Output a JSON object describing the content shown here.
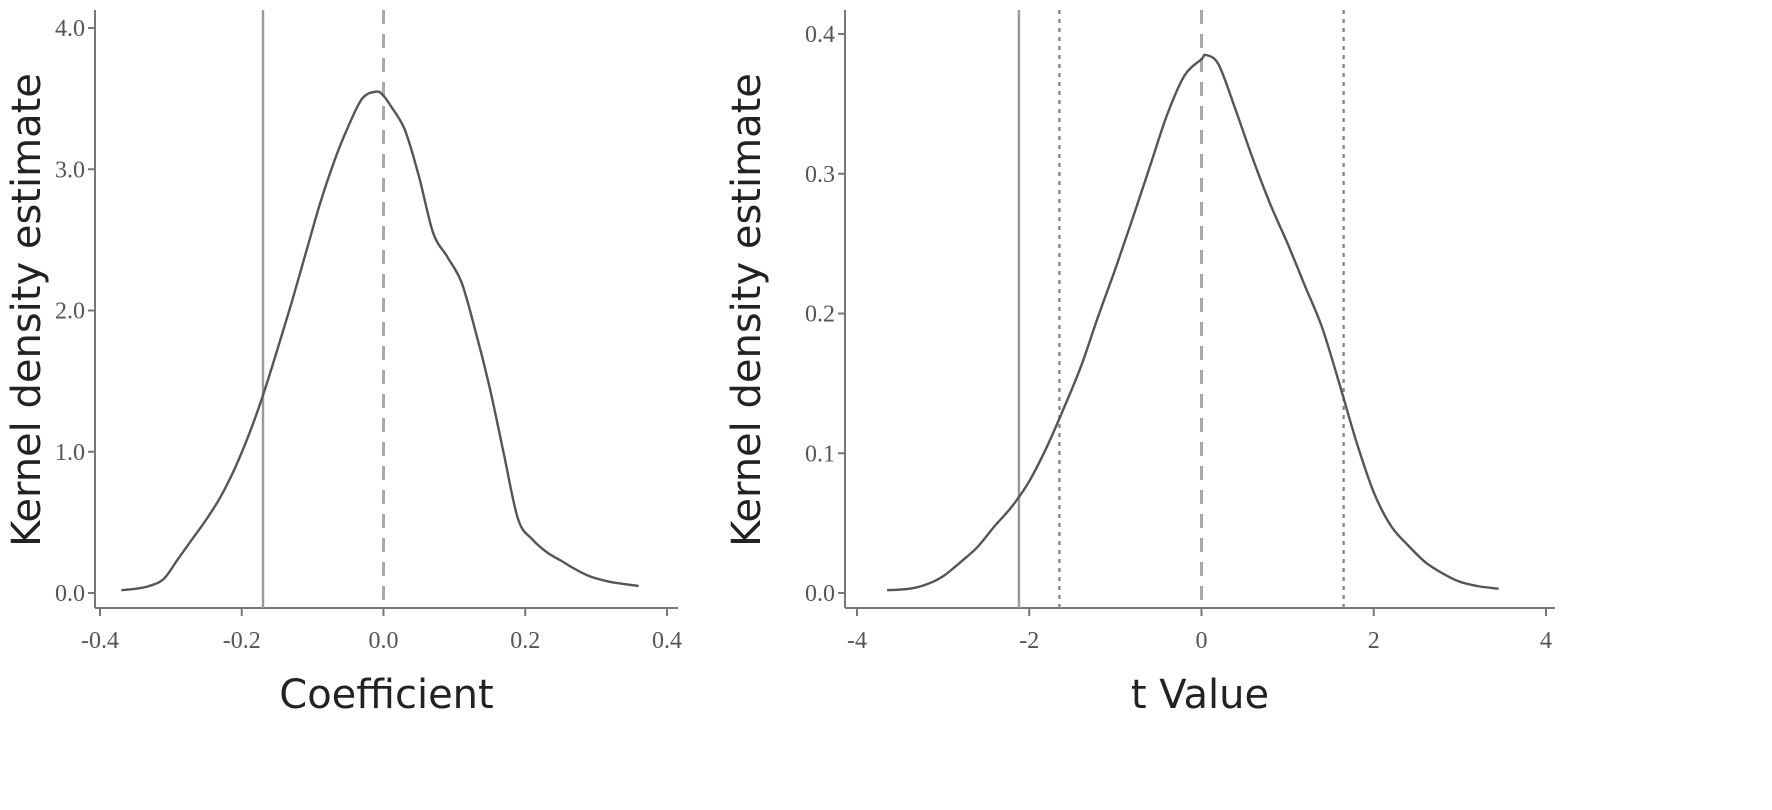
{
  "chart_data": [
    {
      "type": "line",
      "xlabel": "Coefficient",
      "ylabel": "Kernel density estimate",
      "xlim": [
        -0.4,
        0.4
      ],
      "ylim": [
        0.0,
        4.0
      ],
      "xticks": [
        "-0.4",
        "-0.2",
        "0.0",
        "0.2",
        "0.4"
      ],
      "yticks": [
        "0.0",
        "1.0",
        "2.0",
        "3.0",
        "4.0"
      ],
      "grid": false,
      "series": [
        {
          "x": [
            -0.37,
            -0.35,
            -0.33,
            -0.31,
            -0.29,
            -0.27,
            -0.25,
            -0.23,
            -0.21,
            -0.19,
            -0.17,
            -0.15,
            -0.13,
            -0.11,
            -0.09,
            -0.07,
            -0.05,
            -0.03,
            -0.01,
            0.0,
            0.01,
            0.03,
            0.05,
            0.07,
            0.09,
            0.11,
            0.13,
            0.15,
            0.17,
            0.19,
            0.21,
            0.23,
            0.25,
            0.27,
            0.29,
            0.31,
            0.33,
            0.36
          ],
          "y": [
            0.02,
            0.03,
            0.05,
            0.1,
            0.24,
            0.38,
            0.52,
            0.68,
            0.88,
            1.12,
            1.4,
            1.72,
            2.05,
            2.4,
            2.75,
            3.05,
            3.3,
            3.5,
            3.55,
            3.52,
            3.45,
            3.28,
            2.95,
            2.55,
            2.38,
            2.2,
            1.85,
            1.45,
            0.98,
            0.52,
            0.38,
            0.29,
            0.23,
            0.17,
            0.12,
            0.09,
            0.07,
            0.05
          ]
        }
      ],
      "reference_lines": [
        {
          "x": -0.17,
          "style": "solid"
        },
        {
          "x": 0.0,
          "style": "dashed"
        }
      ]
    },
    {
      "type": "line",
      "xlabel": "t Value",
      "ylabel": "Kernel density estimate",
      "xlim": [
        -4,
        4
      ],
      "ylim": [
        0.0,
        0.4
      ],
      "xticks": [
        "-4",
        "-2",
        "0",
        "2",
        "4"
      ],
      "yticks": [
        "0.0",
        "0.1",
        "0.2",
        "0.3",
        "0.4"
      ],
      "grid": false,
      "series": [
        {
          "x": [
            -3.65,
            -3.4,
            -3.2,
            -3.0,
            -2.8,
            -2.6,
            -2.4,
            -2.2,
            -2.0,
            -1.8,
            -1.6,
            -1.4,
            -1.2,
            -1.0,
            -0.8,
            -0.6,
            -0.4,
            -0.2,
            0.0,
            0.05,
            0.2,
            0.4,
            0.6,
            0.8,
            1.0,
            1.2,
            1.4,
            1.6,
            1.8,
            2.0,
            2.2,
            2.4,
            2.6,
            2.8,
            3.0,
            3.2,
            3.45
          ],
          "y": [
            0.002,
            0.003,
            0.006,
            0.012,
            0.022,
            0.033,
            0.048,
            0.062,
            0.08,
            0.104,
            0.132,
            0.162,
            0.198,
            0.232,
            0.268,
            0.305,
            0.342,
            0.37,
            0.382,
            0.385,
            0.378,
            0.345,
            0.31,
            0.278,
            0.25,
            0.22,
            0.19,
            0.15,
            0.108,
            0.072,
            0.048,
            0.034,
            0.022,
            0.014,
            0.008,
            0.005,
            0.003
          ]
        }
      ],
      "reference_lines": [
        {
          "x": -2.12,
          "style": "solid"
        },
        {
          "x": -1.65,
          "style": "dotted"
        },
        {
          "x": 0.0,
          "style": "dashed"
        },
        {
          "x": 1.65,
          "style": "dotted"
        }
      ]
    }
  ],
  "colors": {
    "density_line": "#555555",
    "solid_ref": "#999999",
    "dashed_ref": "#aaaaaa",
    "dotted_ref": "#888888",
    "axis": "#777777"
  }
}
